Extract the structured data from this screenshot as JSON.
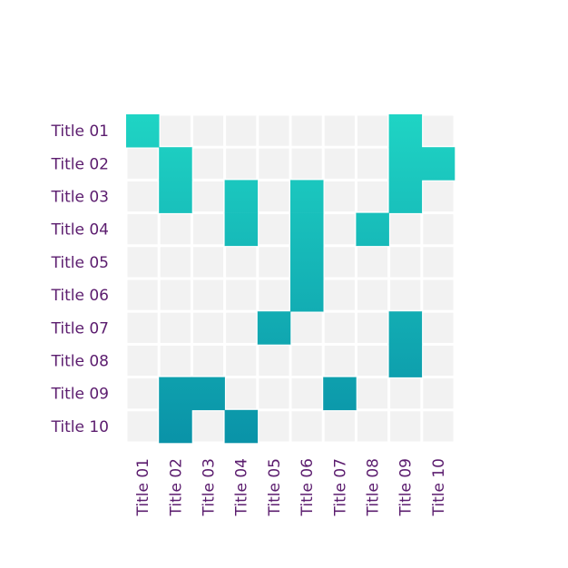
{
  "chart_data": {
    "type": "heatmap",
    "rows": [
      "Title 01",
      "Title 02",
      "Title 03",
      "Title 04",
      "Title 05",
      "Title 06",
      "Title 07",
      "Title 08",
      "Title 09",
      "Title 10"
    ],
    "columns": [
      "Title 01",
      "Title 02",
      "Title 03",
      "Title 04",
      "Title 05",
      "Title 06",
      "Title 07",
      "Title 08",
      "Title 09",
      "Title 10"
    ],
    "values": [
      [
        1,
        0,
        0,
        0,
        0,
        0,
        0,
        0,
        1,
        0
      ],
      [
        0,
        1,
        0,
        0,
        0,
        0,
        0,
        0,
        1,
        1
      ],
      [
        0,
        1,
        0,
        1,
        0,
        1,
        0,
        0,
        1,
        0
      ],
      [
        0,
        0,
        0,
        1,
        0,
        1,
        0,
        1,
        0,
        0
      ],
      [
        0,
        0,
        0,
        0,
        0,
        1,
        0,
        0,
        0,
        0
      ],
      [
        0,
        0,
        0,
        0,
        0,
        1,
        0,
        0,
        0,
        0
      ],
      [
        0,
        0,
        0,
        0,
        1,
        0,
        0,
        0,
        1,
        0
      ],
      [
        0,
        0,
        0,
        0,
        0,
        0,
        0,
        0,
        1,
        0
      ],
      [
        0,
        1,
        1,
        0,
        0,
        0,
        1,
        0,
        0,
        0
      ],
      [
        0,
        1,
        0,
        1,
        0,
        0,
        0,
        0,
        0,
        0
      ]
    ],
    "legend": false
  },
  "colors": {
    "empty_cell": "#f2f2f2",
    "gradient_top": "#1fd4c4",
    "gradient_bottom": "#0a93a8",
    "label_text": "#5b1c6e",
    "background": "#ffffff"
  }
}
